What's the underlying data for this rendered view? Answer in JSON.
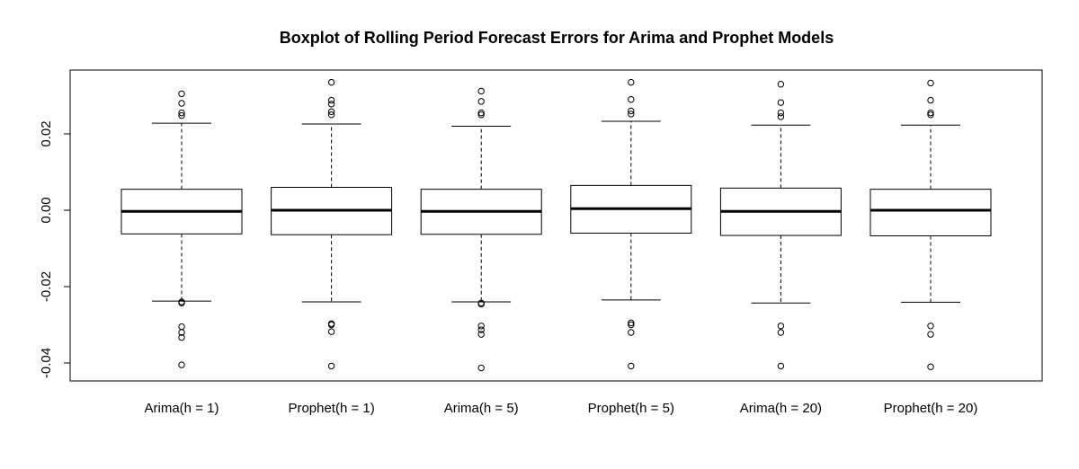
{
  "chart_data": {
    "type": "boxplot",
    "title": "Boxplot of Rolling Period Forecast Errors for Arima and Prophet Models",
    "xlabel": "",
    "ylabel": "",
    "ylim": [
      -0.044,
      0.037
    ],
    "yticks": [
      -0.04,
      -0.02,
      0.0,
      0.02
    ],
    "ytick_labels": [
      "-0.04",
      "-0.02",
      "0.00",
      "0.02"
    ],
    "grid": false,
    "categories": [
      "Arima(h = 1)",
      "Prophet(h = 1)",
      "Arima(h = 5)",
      "Prophet(h = 5)",
      "Arima(h = 20)",
      "Prophet(h = 20)"
    ],
    "boxes": [
      {
        "label": "Arima(h = 1)",
        "whisker_low": -0.0238,
        "q1": -0.0062,
        "median": -0.0003,
        "q3": 0.0055,
        "whisker_high": 0.0228,
        "outliers": [
          0.0305,
          0.028,
          0.0255,
          0.0248,
          -0.024,
          -0.0243,
          -0.0305,
          -0.032,
          -0.0333,
          -0.0405
        ]
      },
      {
        "label": "Prophet(h = 1)",
        "whisker_low": -0.024,
        "q1": -0.0064,
        "median": 0.0,
        "q3": 0.006,
        "whisker_high": 0.0226,
        "outliers": [
          0.0335,
          0.0288,
          0.0278,
          0.0258,
          0.025,
          -0.0297,
          -0.03,
          -0.0318,
          -0.0408
        ]
      },
      {
        "label": "Arima(h = 5)",
        "whisker_low": -0.024,
        "q1": -0.0063,
        "median": -0.0003,
        "q3": 0.0055,
        "whisker_high": 0.022,
        "outliers": [
          0.0312,
          0.0285,
          0.0255,
          0.025,
          -0.0243,
          -0.0246,
          -0.0303,
          -0.0313,
          -0.0325,
          -0.0413
        ]
      },
      {
        "label": "Prophet(h = 5)",
        "whisker_low": -0.0235,
        "q1": -0.006,
        "median": 0.0004,
        "q3": 0.0065,
        "whisker_high": 0.0233,
        "outliers": [
          0.0335,
          0.029,
          0.026,
          0.0252,
          -0.0295,
          -0.03,
          -0.032,
          -0.0408
        ]
      },
      {
        "label": "Arima(h = 20)",
        "whisker_low": -0.0243,
        "q1": -0.0066,
        "median": -0.0003,
        "q3": 0.0058,
        "whisker_high": 0.0223,
        "outliers": [
          0.033,
          0.0282,
          0.0255,
          0.0245,
          -0.0303,
          -0.032,
          -0.0408
        ]
      },
      {
        "label": "Prophet(h = 20)",
        "whisker_low": -0.0241,
        "q1": -0.0067,
        "median": 0.0,
        "q3": 0.0055,
        "whisker_high": 0.0223,
        "outliers": [
          0.0333,
          0.0288,
          0.0255,
          0.025,
          -0.0303,
          -0.0325,
          -0.041
        ]
      }
    ]
  }
}
